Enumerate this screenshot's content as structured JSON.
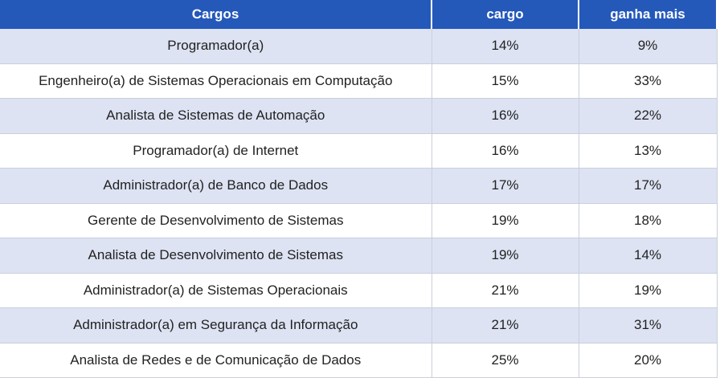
{
  "table": {
    "header": [
      "Cargos",
      "cargo",
      "ganha mais"
    ],
    "rows": [
      [
        "Programador(a)",
        "14%",
        "9%"
      ],
      [
        "Engenheiro(a) de Sistemas Operacionais em Computação",
        "15%",
        "33%"
      ],
      [
        "Analista de Sistemas de Automação",
        "16%",
        "22%"
      ],
      [
        "Programador(a) de Internet",
        "16%",
        "13%"
      ],
      [
        "Administrador(a) de Banco de Dados",
        "17%",
        "17%"
      ],
      [
        "Gerente de Desenvolvimento de Sistemas",
        "19%",
        "18%"
      ],
      [
        "Analista de Desenvolvimento de Sistemas",
        "19%",
        "14%"
      ],
      [
        "Administrador(a) de Sistemas Operacionais",
        "21%",
        "19%"
      ],
      [
        "Administrador(a) em Segurança da Informação",
        "21%",
        "31%"
      ],
      [
        "Analista de Redes e de Comunicação de Dados",
        "25%",
        "20%"
      ]
    ]
  }
}
